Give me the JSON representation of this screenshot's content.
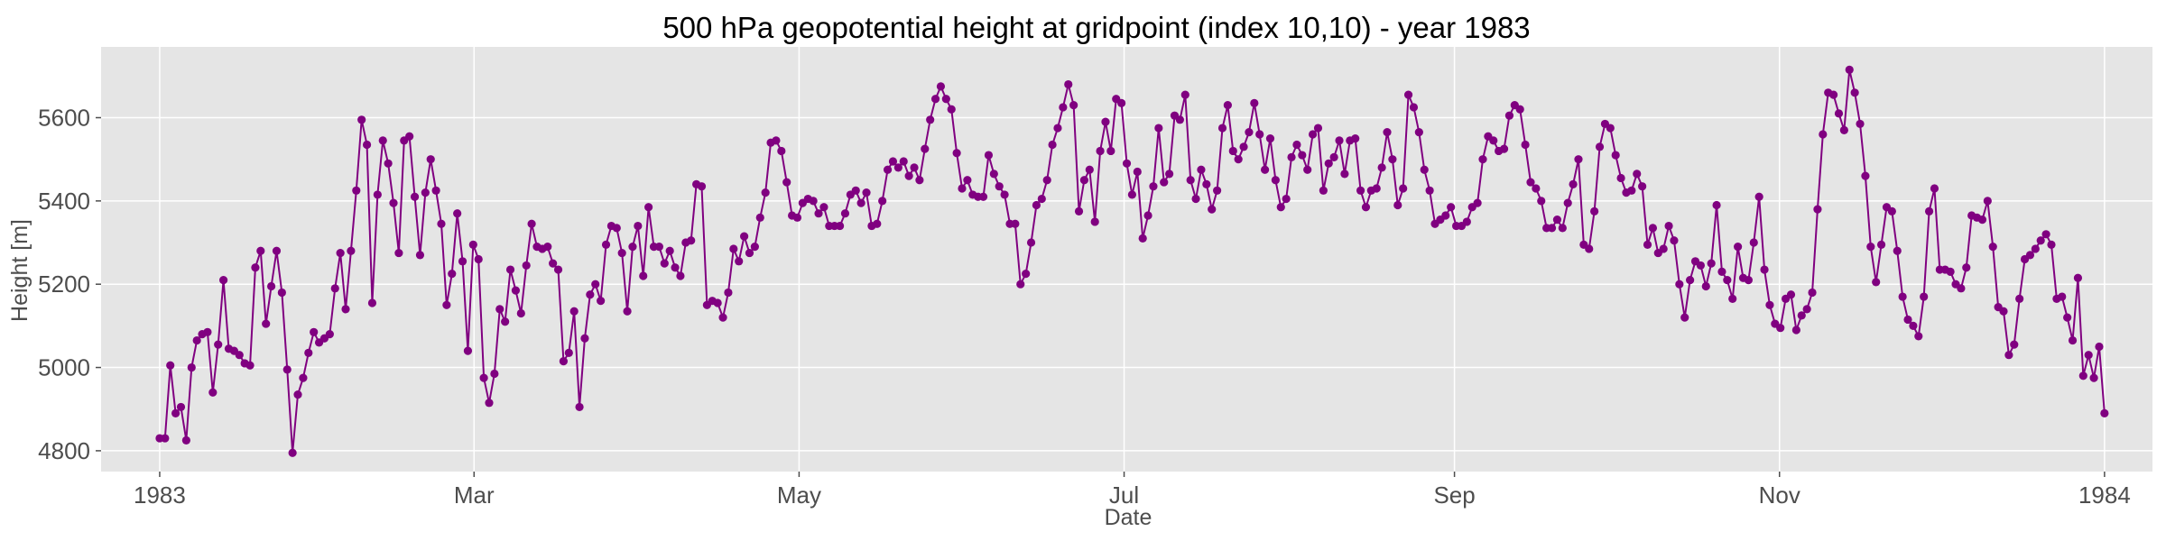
{
  "chart_data": {
    "type": "line",
    "title": "500 hPa geopotential height at gridpoint (index 10,10) - year 1983",
    "xlabel": "Date",
    "ylabel": "Height [m]",
    "xlim": [
      "1982-12-21",
      "1984-01-10"
    ],
    "ylim": [
      4750,
      5770
    ],
    "x_ticks": [
      {
        "date": "1983-01-01",
        "label": "1983"
      },
      {
        "date": "1983-03-01",
        "label": "Mar"
      },
      {
        "date": "1983-05-01",
        "label": "May"
      },
      {
        "date": "1983-07-01",
        "label": "Jul"
      },
      {
        "date": "1983-09-01",
        "label": "Sep"
      },
      {
        "date": "1983-11-01",
        "label": "Nov"
      },
      {
        "date": "1984-01-01",
        "label": "1984"
      }
    ],
    "y_ticks": [
      4800,
      5000,
      5200,
      5400,
      5600
    ],
    "grid": true,
    "legend": "none",
    "marker": "circle",
    "colors": {
      "series": "#800080",
      "plot_bg": "#e5e5e5",
      "grid": "#ffffff"
    },
    "series": [
      {
        "x_start": "1983-01-01",
        "x_end": "1984-01-01",
        "values": [
          4830,
          4830,
          5005,
          4890,
          4905,
          4825,
          5000,
          5065,
          5080,
          5085,
          4940,
          5055,
          5210,
          5045,
          5040,
          5030,
          5010,
          5005,
          5240,
          5280,
          5105,
          5195,
          5280,
          5180,
          4995,
          4795,
          4935,
          4975,
          5035,
          5085,
          5060,
          5070,
          5080,
          5190,
          5275,
          5140,
          5280,
          5425,
          5595,
          5535,
          5155,
          5415,
          5545,
          5490,
          5395,
          5275,
          5545,
          5555,
          5410,
          5270,
          5420,
          5500,
          5425,
          5345,
          5150,
          5225,
          5370,
          5255,
          5040,
          5295,
          5260,
          4975,
          4915,
          4985,
          5140,
          5110,
          5235,
          5185,
          5130,
          5245,
          5345,
          5290,
          5285,
          5290,
          5250,
          5235,
          5015,
          5035,
          5135,
          4905,
          5070,
          5175,
          5200,
          5160,
          5295,
          5340,
          5335,
          5275,
          5135,
          5290,
          5340,
          5220,
          5385,
          5290,
          5290,
          5250,
          5280,
          5240,
          5220,
          5300,
          5305,
          5440,
          5435,
          5150,
          5160,
          5155,
          5120,
          5180,
          5285,
          5255,
          5315,
          5275,
          5290,
          5360,
          5420,
          5540,
          5545,
          5520,
          5445,
          5365,
          5360,
          5395,
          5405,
          5400,
          5370,
          5385,
          5340,
          5340,
          5340,
          5370,
          5415,
          5425,
          5395,
          5420,
          5340,
          5345,
          5400,
          5475,
          5495,
          5480,
          5495,
          5460,
          5480,
          5450,
          5525,
          5595,
          5645,
          5675,
          5645,
          5620,
          5515,
          5430,
          5450,
          5415,
          5410,
          5410,
          5510,
          5465,
          5435,
          5415,
          5345,
          5345,
          5200,
          5225,
          5300,
          5390,
          5405,
          5450,
          5535,
          5575,
          5625,
          5680,
          5630,
          5375,
          5450,
          5475,
          5350,
          5520,
          5590,
          5520,
          5645,
          5635,
          5490,
          5415,
          5470,
          5310,
          5365,
          5435,
          5575,
          5445,
          5465,
          5605,
          5595,
          5655,
          5450,
          5405,
          5475,
          5440,
          5380,
          5425,
          5575,
          5630,
          5520,
          5500,
          5530,
          5565,
          5635,
          5560,
          5475,
          5550,
          5450,
          5385,
          5405,
          5505,
          5535,
          5510,
          5475,
          5560,
          5575,
          5425,
          5490,
          5505,
          5545,
          5465,
          5545,
          5550,
          5425,
          5385,
          5425,
          5430,
          5480,
          5565,
          5500,
          5390,
          5430,
          5655,
          5625,
          5565,
          5475,
          5425,
          5345,
          5355,
          5365,
          5385,
          5340,
          5340,
          5350,
          5385,
          5395,
          5500,
          5555,
          5545,
          5520,
          5525,
          5605,
          5630,
          5620,
          5535,
          5445,
          5430,
          5400,
          5335,
          5335,
          5355,
          5335,
          5395,
          5440,
          5500,
          5295,
          5285,
          5375,
          5530,
          5585,
          5575,
          5510,
          5455,
          5420,
          5425,
          5465,
          5435,
          5295,
          5335,
          5275,
          5285,
          5340,
          5305,
          5200,
          5120,
          5210,
          5255,
          5245,
          5195,
          5250,
          5390,
          5230,
          5210,
          5165,
          5290,
          5215,
          5210,
          5300,
          5410,
          5235,
          5150,
          5105,
          5095,
          5165,
          5175,
          5090,
          5125,
          5140,
          5180,
          5380,
          5560,
          5660,
          5655,
          5610,
          5570,
          5715,
          5660,
          5585,
          5460,
          5290,
          5205,
          5295,
          5385,
          5375,
          5280,
          5170,
          5115,
          5100,
          5075,
          5170,
          5375,
          5430,
          5235,
          5235,
          5230,
          5200,
          5190,
          5240,
          5365,
          5360,
          5355,
          5400,
          5290,
          5145,
          5135,
          5030,
          5055,
          5165,
          5260,
          5270,
          5285,
          5305,
          5320,
          5295,
          5165,
          5170,
          5120,
          5065,
          5215,
          4980,
          5030,
          4975,
          5050,
          4890
        ]
      }
    ]
  }
}
